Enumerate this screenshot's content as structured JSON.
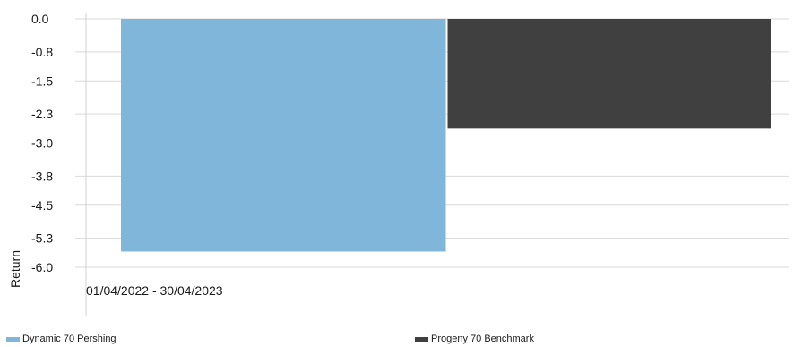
{
  "chart_data": {
    "type": "bar",
    "categories": [
      "01/04/2022 - 30/04/2023"
    ],
    "series": [
      {
        "name": "Dynamic 70 Pershing",
        "values": [
          -5.62
        ],
        "color": "#7fb6da"
      },
      {
        "name": "Progeny 70 Benchmark",
        "values": [
          -2.65
        ],
        "color": "#404040"
      }
    ],
    "yticks": [
      "0.0",
      "-0.8",
      "-1.5",
      "-2.3",
      "-3.0",
      "-3.8",
      "-4.5",
      "-5.3",
      "-6.0"
    ],
    "ylim": [
      -6.0,
      0.0
    ],
    "ylabel": "Return",
    "xlabel": "",
    "grid": true,
    "legend_position": "bottom"
  }
}
